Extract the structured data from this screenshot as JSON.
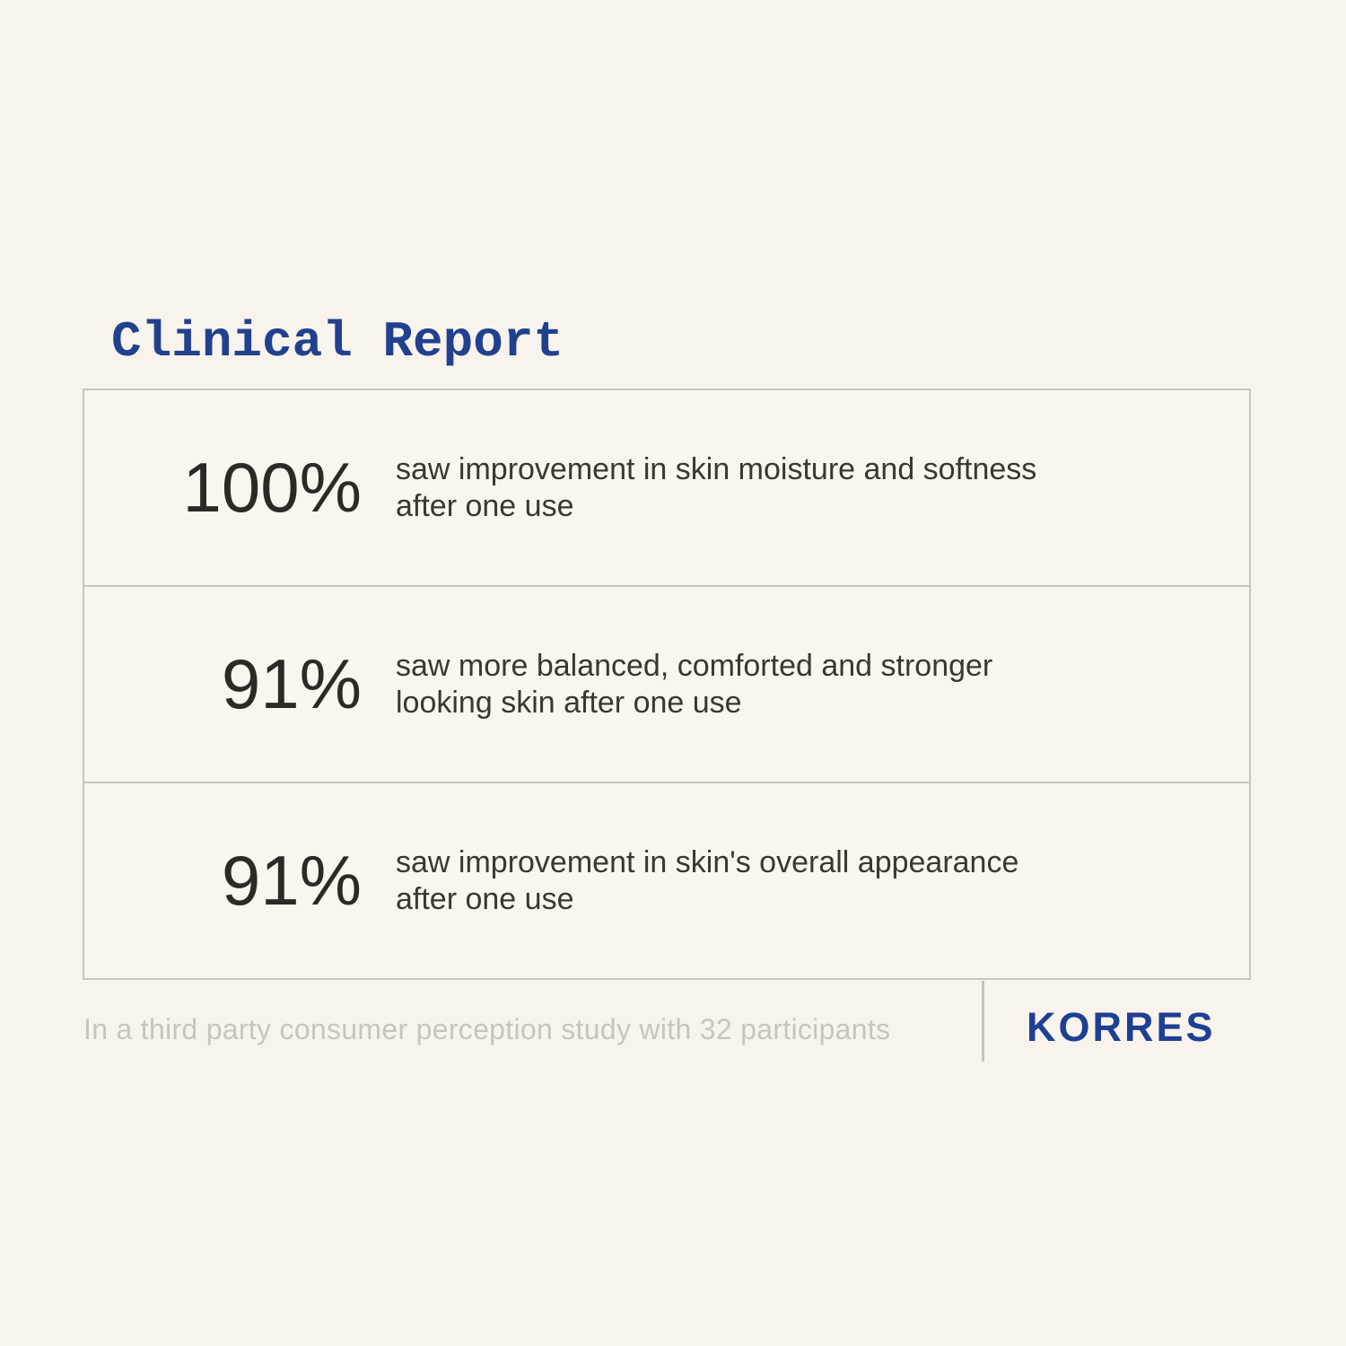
{
  "header": {
    "title": "Clinical Report"
  },
  "chart_data": {
    "type": "table",
    "title": "Clinical Report",
    "rows": [
      {
        "value": "100%",
        "description": "saw improvement in skin moisture and softness after one use"
      },
      {
        "value": "91%",
        "description": "saw more balanced, comforted and stronger looking skin after one use"
      },
      {
        "value": "91%",
        "description": "saw improvement in skin's overall appearance after one use"
      }
    ],
    "footnote": "In a third party consumer perception study with 32 participants",
    "brand": "KORRES"
  },
  "footer": {
    "footnote": "In a third party consumer perception study with 32 participants",
    "brand": "KORRES"
  },
  "colors": {
    "background": "#f8f3ec",
    "panel_background": "#faf5ef",
    "border_gray": "#c9c5c0",
    "title_blue": "#21418f",
    "brand_blue": "#1d3f94",
    "stat_text": "#2d2a26",
    "description_text": "#3a3732",
    "footnote_gray": "#c8c4be"
  }
}
